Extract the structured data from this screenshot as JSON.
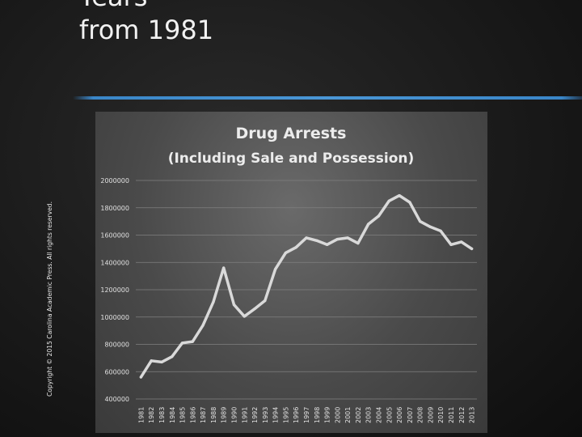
{
  "slide": {
    "title_lines": [
      "Years",
      "from 1981"
    ],
    "copyright": "Copyright © 2015 Carolina Academic Press. All rights reserved."
  },
  "chart_data": {
    "type": "line",
    "title": "Drug Arrests",
    "subtitle": "(Including Sale and Possession)",
    "xlabel": "",
    "ylabel": "",
    "ylim": [
      400000,
      2000000
    ],
    "yticks": [
      400000,
      600000,
      800000,
      1000000,
      1200000,
      1400000,
      1600000,
      1800000,
      2000000
    ],
    "grid": true,
    "legend": "none",
    "line_color": "#d9d9d9",
    "x": [
      "1981",
      "1982",
      "1983",
      "1984",
      "1985",
      "1986",
      "1987",
      "1988",
      "1989",
      "1990",
      "1991",
      "1992",
      "1993",
      "1994",
      "1995",
      "1996",
      "1997",
      "1998",
      "1999",
      "2000",
      "2001",
      "2002",
      "2003",
      "2004",
      "2005",
      "2006",
      "2007",
      "2008",
      "2009",
      "2010",
      "2011",
      "2012",
      "2013"
    ],
    "series": [
      {
        "values": [
          560000,
          680000,
          670000,
          710000,
          810000,
          820000,
          940000,
          1110000,
          1360000,
          1090000,
          1005000,
          1060000,
          1120000,
          1350000,
          1470000,
          1510000,
          1580000,
          1560000,
          1530000,
          1570000,
          1580000,
          1540000,
          1680000,
          1740000,
          1850000,
          1890000,
          1840000,
          1700000,
          1660000,
          1630000,
          1530000,
          1550000,
          1500000
        ]
      }
    ]
  }
}
